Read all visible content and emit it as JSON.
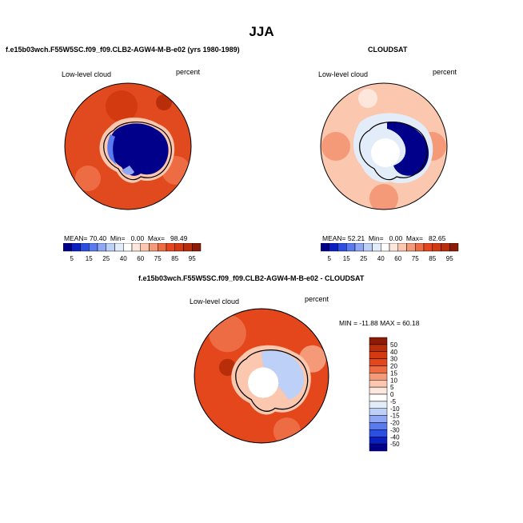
{
  "page_title": "JJA",
  "colors": {
    "blue_scale": [
      "#00008b",
      "#0a1fbf",
      "#2b4fe0",
      "#5a7bf0",
      "#8fa7f5",
      "#bdd0f7",
      "#e3ecf9"
    ],
    "red_scale": [
      "#fde7dc",
      "#fbc7ae",
      "#f59a78",
      "#ee6c44",
      "#e4471c",
      "#d43a10",
      "#b82d0a",
      "#8e1b06"
    ],
    "land": "#ffffff",
    "coast": "#000000"
  },
  "chart_data": [
    {
      "type": "heatmap",
      "title": "f.e15b03wch.F55W5SC.f09_f09.CLB2-AGW4-M-B-e02 (yrs 1980-1989)",
      "variable": "Low-level cloud",
      "units": "percent",
      "projection": "south polar stereographic",
      "stats": {
        "mean": "70.40",
        "min": "0.00",
        "max": "98.49"
      },
      "colorbar": {
        "orientation": "horizontal",
        "labels": [
          "5",
          "15",
          "25",
          "40",
          "60",
          "75",
          "85",
          "95"
        ],
        "boundaries": [
          0,
          5,
          10,
          15,
          20,
          25,
          30,
          40,
          50,
          60,
          70,
          75,
          80,
          85,
          90,
          95,
          100
        ]
      }
    },
    {
      "type": "heatmap",
      "title": "CLOUDSAT",
      "variable": "Low-level cloud",
      "units": "percent",
      "projection": "south polar stereographic",
      "stats": {
        "mean": "52.21",
        "min": "0.00",
        "max": "82.65"
      },
      "colorbar": {
        "orientation": "horizontal",
        "labels": [
          "5",
          "15",
          "25",
          "40",
          "60",
          "75",
          "85",
          "95"
        ],
        "boundaries": [
          0,
          5,
          10,
          15,
          20,
          25,
          30,
          40,
          50,
          60,
          70,
          75,
          80,
          85,
          90,
          95,
          100
        ]
      }
    },
    {
      "type": "heatmap",
      "title": "f.e15b03wch.F55W5SC.f09_f09.CLB2-AGW4-M-B-e02 - CLOUDSAT",
      "variable": "Low-level cloud",
      "units": "percent",
      "projection": "south polar stereographic",
      "stats_line": "MIN = -11.88  MAX =  60.18",
      "stats": {
        "min": "-11.88",
        "max": "60.18"
      },
      "colorbar": {
        "orientation": "vertical",
        "labels": [
          "50",
          "40",
          "30",
          "20",
          "15",
          "10",
          "5",
          "0",
          "-5",
          "-10",
          "-15",
          "-20",
          "-30",
          "-40",
          "-50"
        ]
      }
    }
  ]
}
